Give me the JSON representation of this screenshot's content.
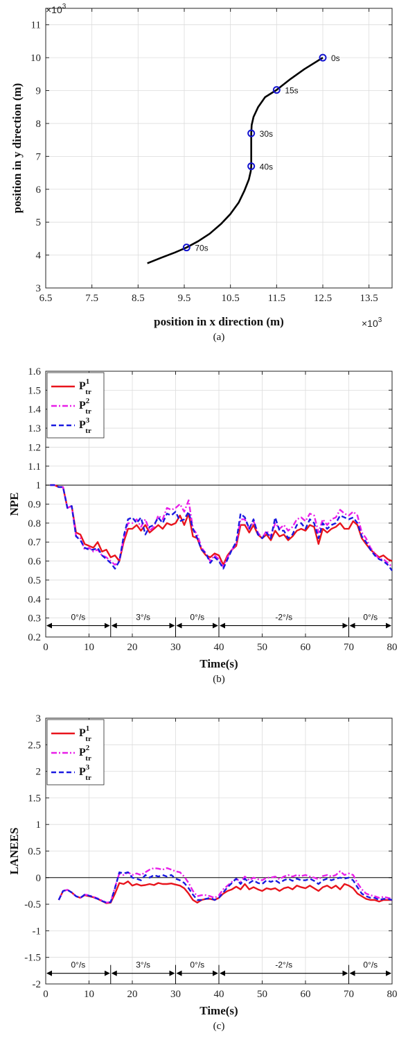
{
  "chart_data": [
    {
      "type": "line",
      "caption": "(a)",
      "xlabel": "position in x direction (m)",
      "ylabel": "position in y direction (m)",
      "x_multiplier": "×10",
      "y_multiplier": "×10",
      "multiplier_exp": "3",
      "xlim": [
        6.5,
        14
      ],
      "ylim": [
        3,
        11.5
      ],
      "x_ticks": [
        "6.5",
        "7.5",
        "8.5",
        "9.5",
        "10.5",
        "11.5",
        "12.5",
        "13.5"
      ],
      "y_ticks": [
        "3",
        "4",
        "5",
        "6",
        "7",
        "8",
        "9",
        "10",
        "11"
      ],
      "grid": true,
      "series": [
        {
          "color": "#000000",
          "x": [
            8.7,
            9.0,
            9.3,
            9.55,
            9.8,
            10.05,
            10.3,
            10.5,
            10.68,
            10.8,
            10.9,
            10.94,
            10.95,
            10.95,
            10.95,
            10.96,
            11.0,
            11.1,
            11.25,
            11.5,
            11.8,
            12.1,
            12.5
          ],
          "y": [
            3.75,
            3.92,
            4.08,
            4.23,
            4.42,
            4.65,
            4.95,
            5.25,
            5.6,
            5.95,
            6.3,
            6.55,
            6.7,
            7.2,
            7.7,
            7.95,
            8.2,
            8.5,
            8.8,
            9.02,
            9.35,
            9.65,
            10.0
          ]
        }
      ],
      "markers": [
        {
          "x": 12.5,
          "y": 10.0,
          "label": "0s"
        },
        {
          "x": 11.5,
          "y": 9.02,
          "label": "15s"
        },
        {
          "x": 10.95,
          "y": 7.7,
          "label": "30s"
        },
        {
          "x": 10.95,
          "y": 6.7,
          "label": "40s"
        },
        {
          "x": 9.55,
          "y": 4.23,
          "label": "70s"
        }
      ]
    },
    {
      "type": "line",
      "caption": "(b)",
      "xlabel": "Time(s)",
      "ylabel": "NPE",
      "xlim": [
        0,
        80
      ],
      "ylim": [
        0.2,
        1.6
      ],
      "x_ticks": [
        "0",
        "10",
        "20",
        "30",
        "40",
        "50",
        "60",
        "70",
        "80"
      ],
      "y_ticks": [
        "0.2",
        "0.3",
        "0.4",
        "0.5",
        "0.6",
        "0.7",
        "0.8",
        "0.9",
        "1",
        "1.1",
        "1.2",
        "1.3",
        "1.4",
        "1.5",
        "1.6"
      ],
      "grid": true,
      "reference_line": 1,
      "legend": {
        "position": "top-left",
        "entries": [
          {
            "main": "P",
            "sup": "1",
            "sub": "tr",
            "color": "#e8141c",
            "dash": "solid"
          },
          {
            "main": "P",
            "sup": "2",
            "sub": "tr",
            "color": "#e81ee8",
            "dash": "dashdot"
          },
          {
            "main": "P",
            "sup": "3",
            "sub": "tr",
            "color": "#1a1ae0",
            "dash": "dashed"
          }
        ]
      },
      "segments": [
        {
          "start": 0,
          "end": 15,
          "label": "0°/s"
        },
        {
          "start": 15,
          "end": 30,
          "label": "3°/s"
        },
        {
          "start": 30,
          "end": 40,
          "label": "0°/s"
        },
        {
          "start": 40,
          "end": 70,
          "label": "-2°/s"
        },
        {
          "start": 70,
          "end": 80,
          "label": "0°/s"
        }
      ],
      "segment_y": 0.26,
      "x": [
        1,
        2,
        3,
        4,
        5,
        6,
        7,
        8,
        9,
        10,
        11,
        12,
        13,
        14,
        15,
        16,
        17,
        18,
        19,
        20,
        21,
        22,
        23,
        24,
        25,
        26,
        27,
        28,
        29,
        30,
        31,
        32,
        33,
        34,
        35,
        36,
        37,
        38,
        39,
        40,
        41,
        42,
        43,
        44,
        45,
        46,
        47,
        48,
        49,
        50,
        51,
        52,
        53,
        54,
        55,
        56,
        57,
        58,
        59,
        60,
        61,
        62,
        63,
        64,
        65,
        66,
        67,
        68,
        69,
        70,
        71,
        72,
        73,
        74,
        75,
        76,
        77,
        78,
        79,
        80
      ],
      "series": [
        {
          "name": "P1tr",
          "color": "#e8141c",
          "dash": "solid",
          "values": [
            1.0,
            1.0,
            0.99,
            0.99,
            0.88,
            0.89,
            0.75,
            0.74,
            0.69,
            0.68,
            0.67,
            0.7,
            0.65,
            0.66,
            0.62,
            0.63,
            0.6,
            0.7,
            0.77,
            0.77,
            0.79,
            0.76,
            0.79,
            0.75,
            0.77,
            0.79,
            0.77,
            0.8,
            0.79,
            0.8,
            0.84,
            0.79,
            0.85,
            0.73,
            0.72,
            0.66,
            0.63,
            0.62,
            0.64,
            0.63,
            0.58,
            0.63,
            0.66,
            0.68,
            0.79,
            0.79,
            0.75,
            0.79,
            0.74,
            0.72,
            0.74,
            0.71,
            0.76,
            0.73,
            0.74,
            0.71,
            0.73,
            0.76,
            0.77,
            0.76,
            0.79,
            0.78,
            0.69,
            0.77,
            0.75,
            0.77,
            0.78,
            0.8,
            0.77,
            0.77,
            0.81,
            0.79,
            0.72,
            0.69,
            0.66,
            0.64,
            0.62,
            0.63,
            0.61,
            0.6
          ]
        },
        {
          "name": "P2tr",
          "color": "#e81ee8",
          "dash": "dashdot",
          "values": [
            1.0,
            1.0,
            0.99,
            0.99,
            0.88,
            0.89,
            0.73,
            0.72,
            0.66,
            0.67,
            0.65,
            0.66,
            0.63,
            0.62,
            0.6,
            0.58,
            0.6,
            0.72,
            0.8,
            0.8,
            0.82,
            0.78,
            0.82,
            0.76,
            0.78,
            0.84,
            0.82,
            0.88,
            0.87,
            0.88,
            0.9,
            0.86,
            0.92,
            0.77,
            0.74,
            0.67,
            0.64,
            0.6,
            0.63,
            0.61,
            0.57,
            0.62,
            0.66,
            0.69,
            0.82,
            0.82,
            0.77,
            0.81,
            0.75,
            0.72,
            0.76,
            0.73,
            0.8,
            0.77,
            0.79,
            0.76,
            0.78,
            0.82,
            0.83,
            0.81,
            0.85,
            0.84,
            0.75,
            0.82,
            0.79,
            0.82,
            0.83,
            0.87,
            0.85,
            0.84,
            0.86,
            0.84,
            0.75,
            0.72,
            0.67,
            0.64,
            0.61,
            0.61,
            0.59,
            0.57
          ]
        },
        {
          "name": "P3tr",
          "color": "#1a1ae0",
          "dash": "dashed",
          "values": [
            1.0,
            1.0,
            0.99,
            0.99,
            0.88,
            0.89,
            0.73,
            0.71,
            0.67,
            0.66,
            0.66,
            0.67,
            0.63,
            0.61,
            0.59,
            0.56,
            0.6,
            0.73,
            0.82,
            0.83,
            0.8,
            0.83,
            0.74,
            0.78,
            0.79,
            0.83,
            0.8,
            0.85,
            0.84,
            0.86,
            0.81,
            0.82,
            0.86,
            0.77,
            0.72,
            0.66,
            0.64,
            0.59,
            0.62,
            0.6,
            0.56,
            0.61,
            0.66,
            0.7,
            0.85,
            0.83,
            0.77,
            0.82,
            0.74,
            0.72,
            0.75,
            0.72,
            0.83,
            0.76,
            0.76,
            0.72,
            0.74,
            0.79,
            0.8,
            0.77,
            0.82,
            0.8,
            0.72,
            0.8,
            0.77,
            0.79,
            0.8,
            0.84,
            0.83,
            0.82,
            0.83,
            0.8,
            0.73,
            0.7,
            0.66,
            0.63,
            0.61,
            0.6,
            0.58,
            0.55
          ]
        }
      ]
    },
    {
      "type": "line",
      "caption": "(c)",
      "xlabel": "Time(s)",
      "ylabel": "LANEES",
      "xlim": [
        0,
        80
      ],
      "ylim": [
        -2,
        3
      ],
      "x_ticks": [
        "0",
        "10",
        "20",
        "30",
        "40",
        "50",
        "60",
        "70",
        "80"
      ],
      "y_ticks": [
        "-2",
        "-1.5",
        "-1",
        "-0.5",
        "0",
        "0.5",
        "1",
        "1.5",
        "2",
        "2.5",
        "3"
      ],
      "grid": true,
      "reference_line": 0,
      "legend": {
        "position": "top-left",
        "entries": [
          {
            "main": "P",
            "sup": "1",
            "sub": "tr",
            "color": "#e8141c",
            "dash": "solid"
          },
          {
            "main": "P",
            "sup": "2",
            "sub": "tr",
            "color": "#e81ee8",
            "dash": "dashdot"
          },
          {
            "main": "P",
            "sup": "3",
            "sub": "tr",
            "color": "#1a1ae0",
            "dash": "dashed"
          }
        ]
      },
      "segments": [
        {
          "start": 0,
          "end": 15,
          "label": "0°/s"
        },
        {
          "start": 15,
          "end": 30,
          "label": "3°/s"
        },
        {
          "start": 30,
          "end": 40,
          "label": "0°/s"
        },
        {
          "start": 40,
          "end": 70,
          "label": "-2°/s"
        },
        {
          "start": 70,
          "end": 80,
          "label": "0°/s"
        }
      ],
      "segment_y": -1.8,
      "x": [
        3,
        4,
        5,
        6,
        7,
        8,
        9,
        10,
        11,
        12,
        13,
        14,
        15,
        16,
        17,
        18,
        19,
        20,
        21,
        22,
        23,
        24,
        25,
        26,
        27,
        28,
        29,
        30,
        31,
        32,
        33,
        34,
        35,
        36,
        37,
        38,
        39,
        40,
        41,
        42,
        43,
        44,
        45,
        46,
        47,
        48,
        49,
        50,
        51,
        52,
        53,
        54,
        55,
        56,
        57,
        58,
        59,
        60,
        61,
        62,
        63,
        64,
        65,
        66,
        67,
        68,
        69,
        70,
        71,
        72,
        73,
        74,
        75,
        76,
        77,
        78,
        79,
        80
      ],
      "series": [
        {
          "name": "P1tr",
          "color": "#e8141c",
          "dash": "solid",
          "values": [
            -0.42,
            -0.25,
            -0.23,
            -0.28,
            -0.35,
            -0.38,
            -0.33,
            -0.35,
            -0.37,
            -0.4,
            -0.44,
            -0.48,
            -0.47,
            -0.3,
            -0.1,
            -0.12,
            -0.07,
            -0.15,
            -0.12,
            -0.15,
            -0.14,
            -0.12,
            -0.14,
            -0.1,
            -0.12,
            -0.12,
            -0.11,
            -0.13,
            -0.15,
            -0.2,
            -0.3,
            -0.42,
            -0.47,
            -0.42,
            -0.4,
            -0.4,
            -0.42,
            -0.38,
            -0.3,
            -0.25,
            -0.22,
            -0.17,
            -0.22,
            -0.12,
            -0.22,
            -0.18,
            -0.22,
            -0.25,
            -0.2,
            -0.22,
            -0.2,
            -0.25,
            -0.2,
            -0.18,
            -0.22,
            -0.15,
            -0.18,
            -0.2,
            -0.15,
            -0.2,
            -0.25,
            -0.18,
            -0.15,
            -0.2,
            -0.15,
            -0.22,
            -0.12,
            -0.15,
            -0.2,
            -0.3,
            -0.35,
            -0.4,
            -0.42,
            -0.42,
            -0.45,
            -0.42,
            -0.42,
            -0.42
          ]
        },
        {
          "name": "P2tr",
          "color": "#e81ee8",
          "dash": "dashdot",
          "values": [
            -0.42,
            -0.25,
            -0.23,
            -0.28,
            -0.35,
            -0.38,
            -0.32,
            -0.33,
            -0.36,
            -0.39,
            -0.43,
            -0.47,
            -0.46,
            -0.18,
            0.08,
            0.05,
            0.1,
            0.05,
            0.08,
            0.05,
            0.1,
            0.15,
            0.18,
            0.17,
            0.15,
            0.18,
            0.15,
            0.12,
            0.1,
            0.02,
            -0.1,
            -0.25,
            -0.35,
            -0.33,
            -0.33,
            -0.35,
            -0.38,
            -0.33,
            -0.22,
            -0.15,
            -0.08,
            -0.02,
            -0.08,
            0.02,
            -0.05,
            0.0,
            -0.03,
            -0.05,
            0.0,
            0.0,
            0.02,
            -0.03,
            0.02,
            0.05,
            0.02,
            0.05,
            0.03,
            0.05,
            0.02,
            0.0,
            -0.03,
            0.03,
            0.05,
            0.02,
            0.05,
            0.12,
            0.05,
            0.08,
            0.05,
            -0.1,
            -0.22,
            -0.3,
            -0.33,
            -0.35,
            -0.38,
            -0.36,
            -0.38,
            -0.4
          ]
        },
        {
          "name": "P3tr",
          "color": "#1a1ae0",
          "dash": "dashed",
          "values": [
            -0.42,
            -0.25,
            -0.23,
            -0.28,
            -0.35,
            -0.38,
            -0.32,
            -0.34,
            -0.37,
            -0.4,
            -0.44,
            -0.47,
            -0.46,
            -0.2,
            0.1,
            0.08,
            0.1,
            0.0,
            -0.02,
            -0.05,
            0.05,
            0.0,
            0.05,
            0.02,
            0.05,
            0.02,
            0.05,
            -0.02,
            -0.05,
            -0.1,
            -0.2,
            -0.32,
            -0.42,
            -0.42,
            -0.4,
            -0.38,
            -0.42,
            -0.38,
            -0.28,
            -0.18,
            -0.1,
            -0.02,
            -0.12,
            -0.02,
            -0.1,
            -0.05,
            -0.1,
            -0.12,
            -0.05,
            -0.08,
            -0.05,
            -0.1,
            -0.05,
            -0.02,
            -0.06,
            -0.02,
            -0.05,
            -0.05,
            -0.02,
            -0.06,
            -0.12,
            -0.05,
            -0.02,
            -0.05,
            -0.02,
            0.0,
            -0.02,
            0.0,
            -0.05,
            -0.18,
            -0.3,
            -0.35,
            -0.38,
            -0.38,
            -0.42,
            -0.4,
            -0.4,
            -0.42
          ]
        }
      ]
    }
  ]
}
